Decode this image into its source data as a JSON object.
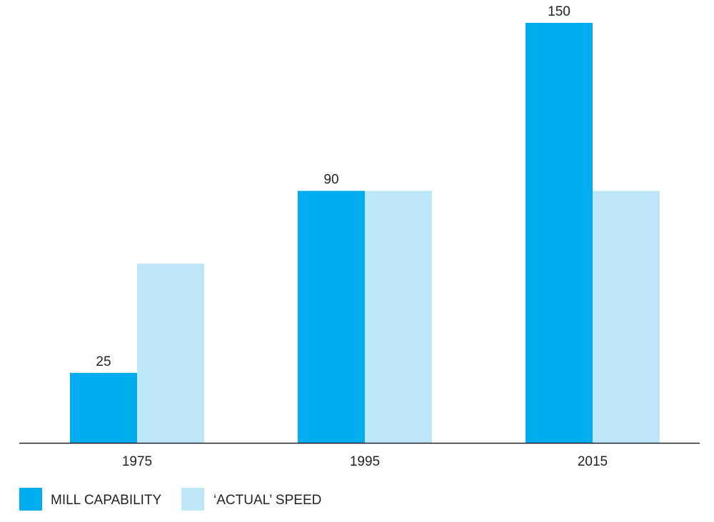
{
  "chart_data": {
    "type": "bar",
    "categories": [
      "1975",
      "1995",
      "2015"
    ],
    "series": [
      {
        "name": "MILL CAPABILITY",
        "values": [
          25,
          90,
          150
        ],
        "labels": [
          "25",
          "90",
          "150"
        ],
        "color": "#00aeef"
      },
      {
        "name": "'ACTUAL' SPEED",
        "values": [
          64,
          90,
          90
        ],
        "labels": null,
        "color": "#bde6f9"
      }
    ],
    "ylim": [
      0,
      150
    ],
    "grid": false,
    "legend_position": "bottom-left",
    "legend": [
      {
        "label": "MILL CAPABILITY",
        "color": "#00aeef"
      },
      {
        "label": "‘ACTUAL’ SPEED",
        "color": "#bde6f9"
      }
    ]
  }
}
